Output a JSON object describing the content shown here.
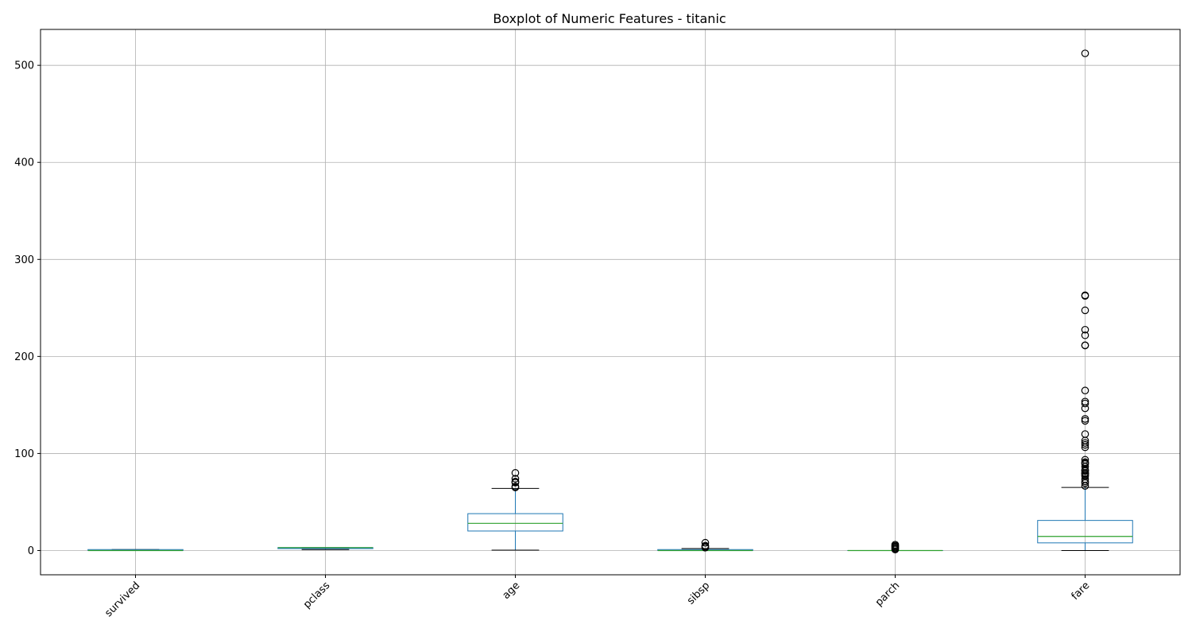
{
  "chart_data": {
    "type": "boxplot",
    "title": "Boxplot of Numeric Features - titanic",
    "xlabel": "",
    "ylabel": "",
    "ylim": [
      -25,
      537
    ],
    "yticks": [
      0,
      100,
      200,
      300,
      400,
      500
    ],
    "grid": true,
    "legend": "none",
    "categories": [
      "survived",
      "pclass",
      "age",
      "sibsp",
      "parch",
      "fare"
    ],
    "boxes": [
      {
        "name": "survived",
        "whisker_low": 0,
        "q1": 0,
        "median": 0,
        "q3": 1,
        "whisker_high": 1,
        "fliers": []
      },
      {
        "name": "pclass",
        "whisker_low": 1,
        "q1": 2,
        "median": 3,
        "q3": 3,
        "whisker_high": 3,
        "fliers": []
      },
      {
        "name": "age",
        "whisker_low": 0.42,
        "q1": 20.1,
        "median": 28,
        "q3": 38,
        "whisker_high": 64,
        "fliers": [
          65,
          66,
          70,
          70.5,
          71,
          74,
          80
        ]
      },
      {
        "name": "sibsp",
        "whisker_low": 0,
        "q1": 0,
        "median": 0,
        "q3": 1,
        "whisker_high": 2,
        "fliers": [
          3,
          4,
          5,
          8
        ]
      },
      {
        "name": "parch",
        "whisker_low": 0,
        "q1": 0,
        "median": 0,
        "q3": 0,
        "whisker_high": 0,
        "fliers": [
          1,
          2,
          3,
          4,
          5,
          6
        ]
      },
      {
        "name": "fare",
        "whisker_low": 0,
        "q1": 7.9,
        "median": 14.5,
        "q3": 31,
        "whisker_high": 65,
        "fliers": [
          66.6,
          69.55,
          71.28,
          73.5,
          76.73,
          77.96,
          79.2,
          79.65,
          80,
          81.86,
          82.17,
          83.16,
          86.5,
          89.1,
          90,
          91.08,
          93.5,
          106.43,
          108.9,
          110.88,
          113.28,
          120,
          133.65,
          135.63,
          146.52,
          151.55,
          153.46,
          164.87,
          211.34,
          211.5,
          221.78,
          227.53,
          247.52,
          262.38,
          263,
          512.33
        ]
      }
    ],
    "colors": {
      "box": "#1f77b4",
      "median": "#2ca02c",
      "whisker_cap": "#000000",
      "flier": "#000000",
      "grid": "#b0b0b0",
      "axis": "#000000"
    }
  }
}
